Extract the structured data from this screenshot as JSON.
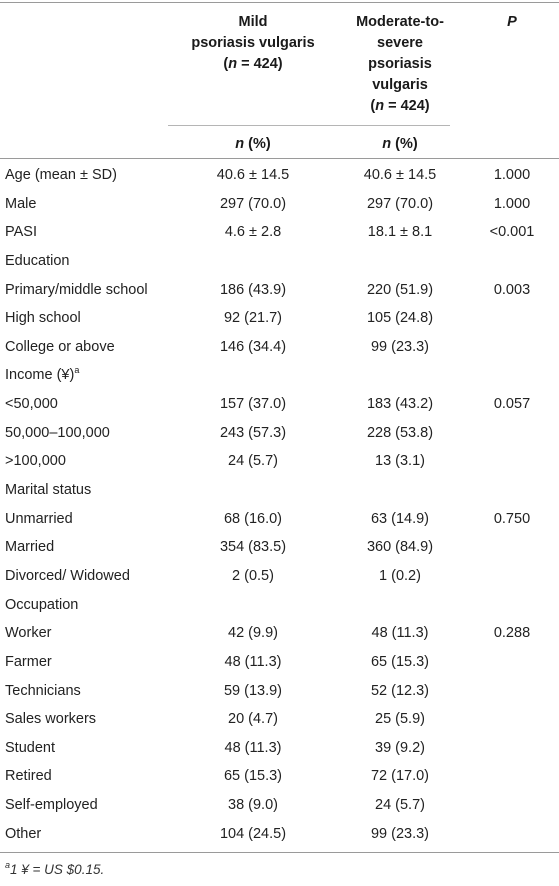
{
  "header": {
    "col1_line1": "Mild",
    "col1_line2": "psoriasis vulgaris",
    "col1_n": "n",
    "col1_n_value": " = 424)",
    "col2_line1": "Moderate-to-",
    "col2_line2": "severe",
    "col2_line3": "psoriasis",
    "col2_line4": "vulgaris",
    "col2_n": "n",
    "col2_n_value": " = 424)",
    "col3": "P"
  },
  "subheader": {
    "col1_n": "n",
    "col1_pct": " (%)",
    "col2_n": "n",
    "col2_pct": " (%)"
  },
  "rows": [
    {
      "label": "Age (mean ± SD)",
      "mild": "40.6 ± 14.5",
      "severe": "40.6 ± 14.5",
      "p": "1.000"
    },
    {
      "label": "Male",
      "mild": "297 (70.0)",
      "severe": "297 (70.0)",
      "p": "1.000"
    },
    {
      "label": "PASI",
      "mild": "4.6 ± 2.8",
      "severe": "18.1 ± 8.1",
      "p": "<0.001"
    },
    {
      "label": "Education",
      "mild": "",
      "severe": "",
      "p": ""
    },
    {
      "label": "Primary/middle school",
      "mild": "186 (43.9)",
      "severe": "220 (51.9)",
      "p": "0.003"
    },
    {
      "label": "High school",
      "mild": "92 (21.7)",
      "severe": "105 (24.8)",
      "p": ""
    },
    {
      "label": "College or above",
      "mild": "146 (34.4)",
      "severe": "99 (23.3)",
      "p": ""
    },
    {
      "label": "Income (¥)",
      "label_sup": "a",
      "mild": "",
      "severe": "",
      "p": ""
    },
    {
      "label": "<50,000",
      "mild": "157 (37.0)",
      "severe": "183 (43.2)",
      "p": "0.057"
    },
    {
      "label": "50,000–100,000",
      "mild": "243 (57.3)",
      "severe": "228 (53.8)",
      "p": ""
    },
    {
      "label": ">100,000",
      "mild": "24 (5.7)",
      "severe": "13 (3.1)",
      "p": ""
    },
    {
      "label": "Marital status",
      "mild": "",
      "severe": "",
      "p": ""
    },
    {
      "label": "Unmarried",
      "mild": "68 (16.0)",
      "severe": "63 (14.9)",
      "p": "0.750"
    },
    {
      "label": "Married",
      "mild": "354 (83.5)",
      "severe": "360 (84.9)",
      "p": ""
    },
    {
      "label": "Divorced/ Widowed",
      "mild": "2 (0.5)",
      "severe": "1 (0.2)",
      "p": ""
    },
    {
      "label": "Occupation",
      "mild": "",
      "severe": "",
      "p": ""
    },
    {
      "label": "Worker",
      "mild": "42 (9.9)",
      "severe": "48 (11.3)",
      "p": "0.288"
    },
    {
      "label": "Farmer",
      "mild": "48 (11.3)",
      "severe": "65 (15.3)",
      "p": ""
    },
    {
      "label": "Technicians",
      "mild": "59 (13.9)",
      "severe": "52 (12.3)",
      "p": ""
    },
    {
      "label": "Sales workers",
      "mild": "20 (4.7)",
      "severe": "25 (5.9)",
      "p": ""
    },
    {
      "label": "Student",
      "mild": "48 (11.3)",
      "severe": "39 (9.2)",
      "p": ""
    },
    {
      "label": "Retired",
      "mild": "65 (15.3)",
      "severe": "72 (17.0)",
      "p": ""
    },
    {
      "label": "Self-employed",
      "mild": "38 (9.0)",
      "severe": "24 (5.7)",
      "p": ""
    },
    {
      "label": "Other",
      "mild": "104 (24.5)",
      "severe": "99 (23.3)",
      "p": ""
    }
  ],
  "footnote": {
    "sup": "a",
    "text": "1 ¥ = US $0.15."
  }
}
